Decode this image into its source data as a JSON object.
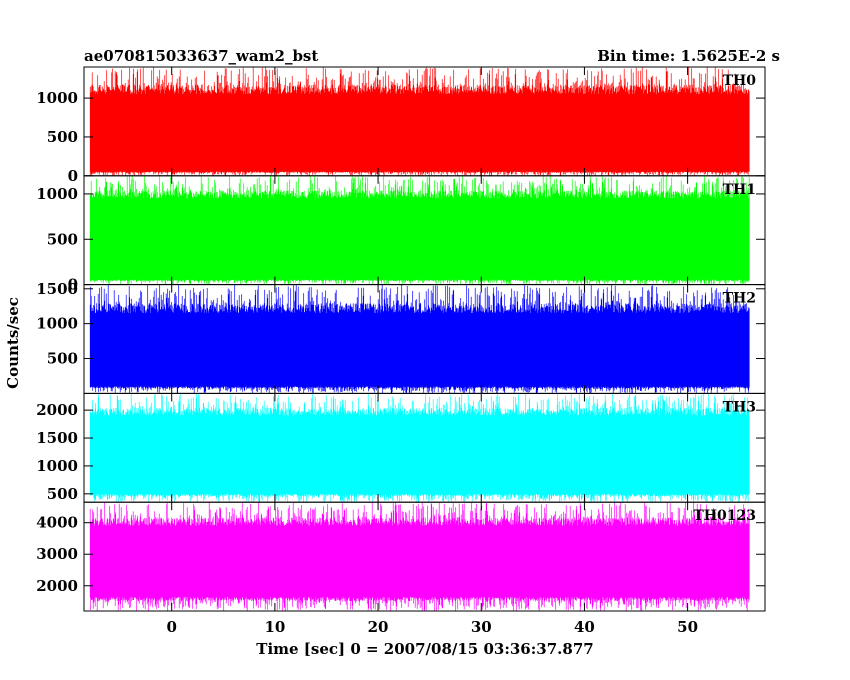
{
  "chart_data": {
    "type": "line",
    "title": "ae070815033637_wam2_bst",
    "bin_time_text": "Bin time: 1.5625E-2 s",
    "xlabel": "Time [sec] 0 = 2007/08/15 03:36:37.877",
    "ylabel": "Counts/sec",
    "xlim": [
      -8.5,
      57.5
    ],
    "x_data_range": [
      -7.9,
      56.0
    ],
    "x_ticks": [
      0,
      10,
      20,
      30,
      40,
      50
    ],
    "x_tick_labels": [
      "0",
      "10",
      "20",
      "30",
      "40",
      "50"
    ],
    "grid": false,
    "series": [
      {
        "name": "TH0",
        "color": "#ff0000",
        "ylim": [
          0,
          1400
        ],
        "y_ticks": [
          0,
          500,
          1000
        ],
        "y_tick_labels": [
          "0",
          "500",
          "1000"
        ],
        "band_min": 55,
        "band_max": 1050,
        "mean": 560,
        "peak_max": 1400
      },
      {
        "name": "TH1",
        "color": "#00ff00",
        "ylim": [
          0,
          1200
        ],
        "y_ticks": [
          0,
          500,
          1000
        ],
        "y_tick_labels": [
          "0",
          "500",
          "1000"
        ],
        "band_min": 55,
        "band_max": 950,
        "mean": 480,
        "peak_max": 1200
      },
      {
        "name": "TH2",
        "color": "#0000ff",
        "ylim": [
          0,
          1560
        ],
        "y_ticks": [
          500,
          1000,
          1500
        ],
        "y_tick_labels": [
          "500",
          "1000",
          "1500"
        ],
        "band_min": 100,
        "band_max": 1150,
        "mean": 640,
        "peak_max": 1560
      },
      {
        "name": "TH3",
        "color": "#00ffff",
        "ylim": [
          350,
          2300
        ],
        "y_ticks": [
          500,
          1000,
          1500,
          2000
        ],
        "y_tick_labels": [
          "500",
          "1000",
          "1500",
          "2000"
        ],
        "band_min": 500,
        "band_max": 1900,
        "mean": 1200,
        "peak_max": 2300
      },
      {
        "name": "TH0123",
        "color": "#ff00ff",
        "ylim": [
          1200,
          4650
        ],
        "y_ticks": [
          2000,
          3000,
          4000
        ],
        "y_tick_labels": [
          "2000",
          "3000",
          "4000"
        ],
        "band_min": 1650,
        "band_max": 3900,
        "mean": 2800,
        "peak_max": 4650
      }
    ]
  }
}
